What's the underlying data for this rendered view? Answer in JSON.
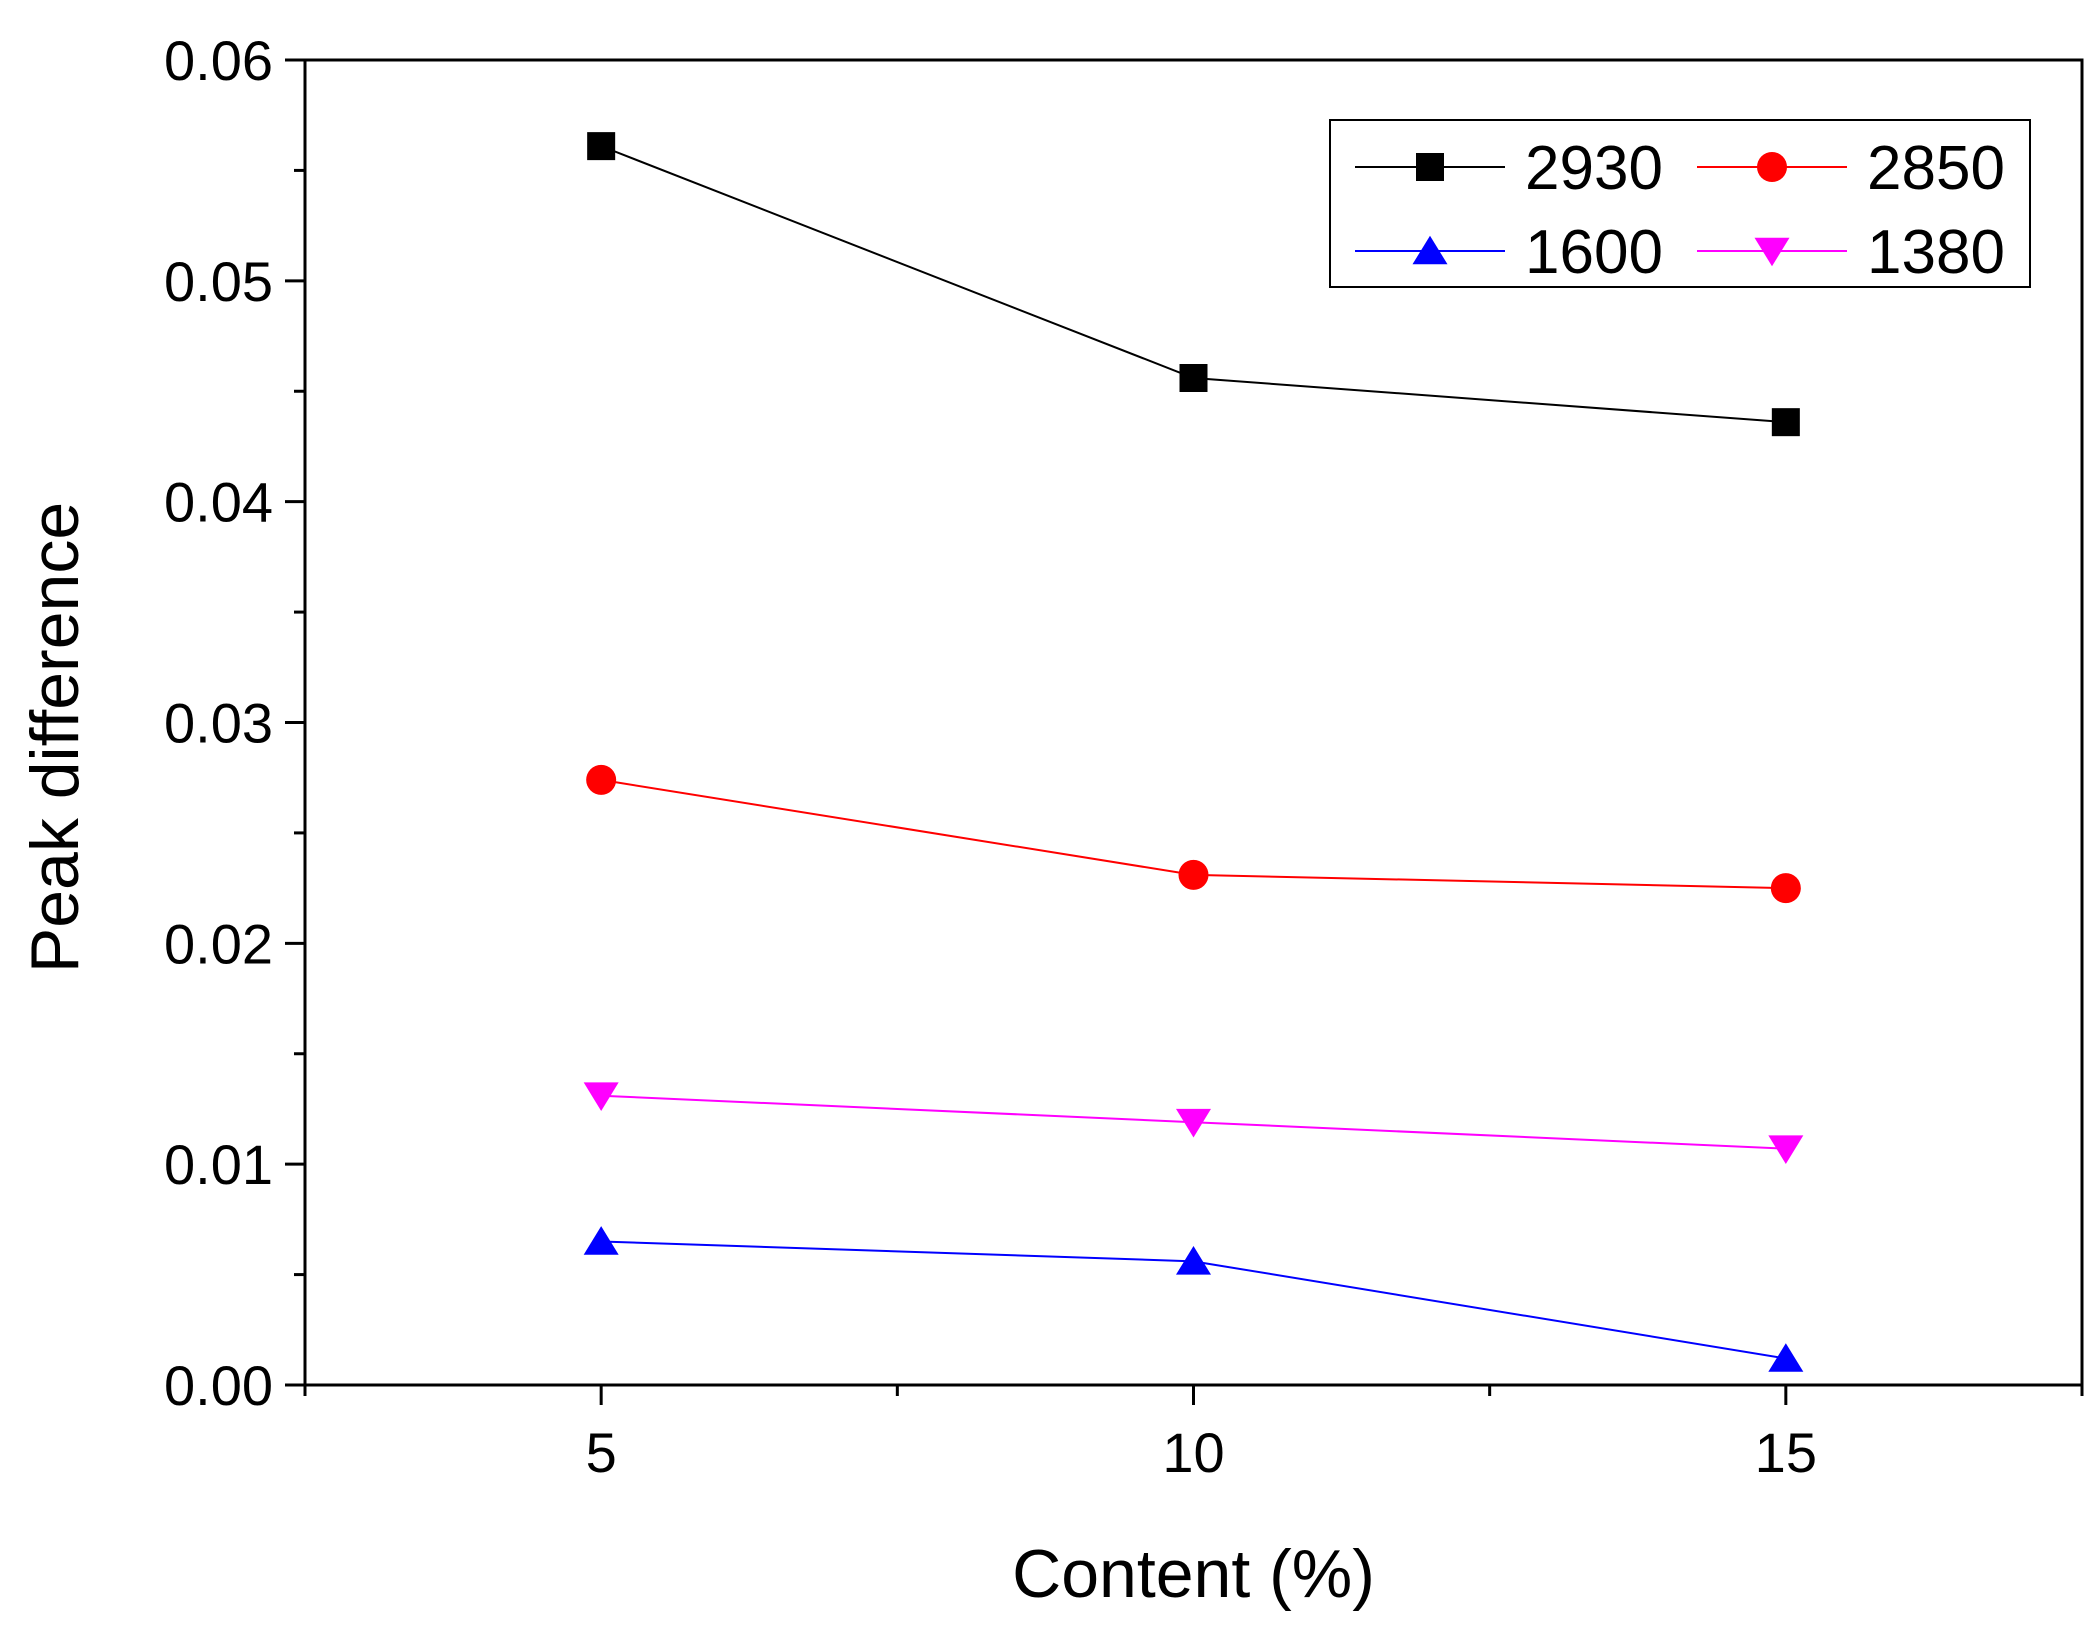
{
  "chart_data": {
    "type": "line",
    "title": "",
    "xlabel": "Content (%)",
    "ylabel": "Peak difference",
    "x": [
      5,
      10,
      15
    ],
    "xlim": [
      2.5,
      17.5
    ],
    "ylim": [
      0,
      0.06
    ],
    "x_ticks": [
      5,
      10,
      15
    ],
    "x_tick_labels": [
      "5",
      "10",
      "15"
    ],
    "y_ticks": [
      0,
      0.01,
      0.02,
      0.03,
      0.04,
      0.05,
      0.06
    ],
    "y_tick_labels": [
      "0.00",
      "0.01",
      "0.02",
      "0.03",
      "0.04",
      "0.05",
      "0.06"
    ],
    "grid": false,
    "legend_position": "top-right",
    "series": [
      {
        "name": "2930",
        "color": "#000000",
        "marker": "square",
        "values": [
          0.0561,
          0.0456,
          0.0436
        ]
      },
      {
        "name": "2850",
        "color": "#ff0000",
        "marker": "circle",
        "values": [
          0.0274,
          0.0231,
          0.0225
        ]
      },
      {
        "name": "1600",
        "color": "#0000ff",
        "marker": "triangle-up",
        "values": [
          0.0065,
          0.0056,
          0.0012
        ]
      },
      {
        "name": "1380",
        "color": "#ff00ff",
        "marker": "triangle-down",
        "values": [
          0.0131,
          0.0119,
          0.0107
        ]
      }
    ]
  }
}
